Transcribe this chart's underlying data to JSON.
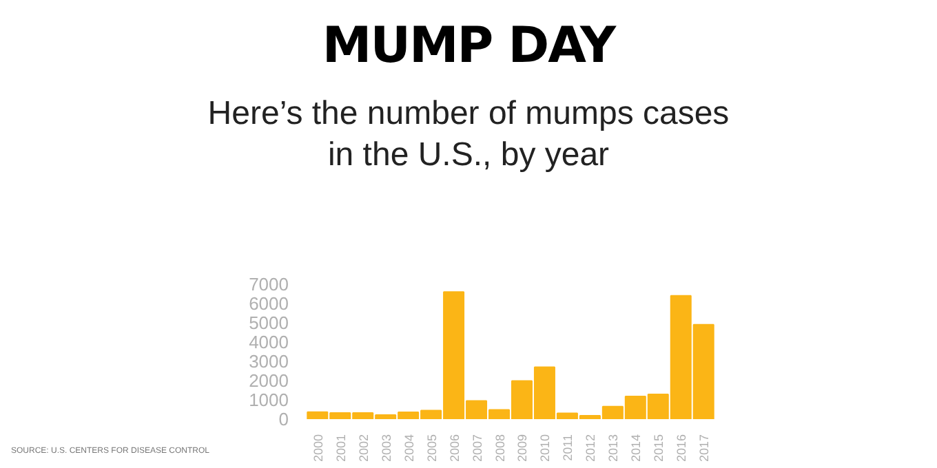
{
  "chart_data": {
    "type": "bar",
    "title": "MUMP DAY",
    "subtitle": "Here’s the number of mumps cases in the U.S., by year",
    "categories": [
      "2000",
      "2001",
      "2002",
      "2003",
      "2004",
      "2005",
      "2006",
      "2007",
      "2008",
      "2009",
      "2010",
      "2011",
      "2012",
      "2013",
      "2014",
      "2015",
      "2016",
      "2017"
    ],
    "values": [
      370,
      320,
      320,
      210,
      360,
      450,
      6600,
      950,
      480,
      1980,
      2700,
      300,
      180,
      650,
      1180,
      1290,
      6400,
      4900
    ],
    "color": "#fbb516",
    "ylim": [
      0,
      7000
    ],
    "yticks": [
      0,
      1000,
      2000,
      3000,
      4000,
      5000,
      6000,
      7000
    ],
    "grid": false,
    "annotations": [
      "SOURCE: U.S. CENTERS FOR DISEASE CONTROL"
    ]
  }
}
